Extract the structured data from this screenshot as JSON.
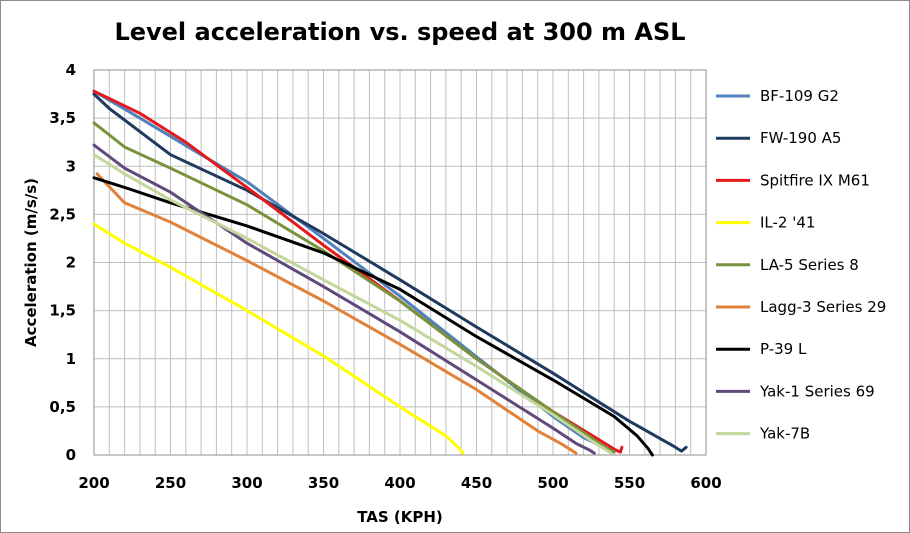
{
  "chart_data": {
    "type": "line",
    "title": "Level acceleration vs. speed at 300 m ASL",
    "xlabel": "TAS (KPH)",
    "ylabel": "Acceleration (m/s/s)",
    "xlim": [
      200,
      600
    ],
    "ylim": [
      0,
      4
    ],
    "x_ticks": [
      "200",
      "250",
      "300",
      "350",
      "400",
      "450",
      "500",
      "550",
      "600"
    ],
    "y_ticks": [
      "0",
      "0,5",
      "1",
      "1,5",
      "2",
      "2,5",
      "3",
      "3,5",
      "4"
    ],
    "grid": "vertical and horizontal",
    "legend_position": "right",
    "series": [
      {
        "name": "BF-109 G2",
        "color": "#4f81bd",
        "points": [
          [
            200,
            3.78
          ],
          [
            230,
            3.5
          ],
          [
            270,
            3.12
          ],
          [
            300,
            2.84
          ],
          [
            350,
            2.25
          ],
          [
            400,
            1.65
          ],
          [
            450,
            1.02
          ],
          [
            500,
            0.4
          ],
          [
            520,
            0.18
          ],
          [
            535,
            0.07
          ],
          [
            540,
            0.04
          ]
        ]
      },
      {
        "name": "FW-190 A5",
        "color": "#1f3a5f",
        "points": [
          [
            200,
            3.75
          ],
          [
            210,
            3.6
          ],
          [
            250,
            3.12
          ],
          [
            300,
            2.75
          ],
          [
            350,
            2.3
          ],
          [
            400,
            1.82
          ],
          [
            450,
            1.33
          ],
          [
            500,
            0.85
          ],
          [
            550,
            0.35
          ],
          [
            578,
            0.1
          ],
          [
            584,
            0.04
          ],
          [
            587,
            0.08
          ]
        ]
      },
      {
        "name": "Spitfire IX M61",
        "color": "#e31a1c",
        "points": [
          [
            200,
            3.78
          ],
          [
            230,
            3.55
          ],
          [
            260,
            3.25
          ],
          [
            300,
            2.78
          ],
          [
            350,
            2.18
          ],
          [
            400,
            1.6
          ],
          [
            450,
            1.0
          ],
          [
            500,
            0.45
          ],
          [
            530,
            0.16
          ],
          [
            540,
            0.06
          ],
          [
            544,
            0.03
          ],
          [
            545,
            0.08
          ]
        ]
      },
      {
        "name": "IL-2 '41",
        "color": "#ffff00",
        "points": [
          [
            200,
            2.4
          ],
          [
            220,
            2.2
          ],
          [
            250,
            1.95
          ],
          [
            300,
            1.5
          ],
          [
            350,
            1.03
          ],
          [
            400,
            0.5
          ],
          [
            430,
            0.2
          ],
          [
            438,
            0.08
          ],
          [
            441,
            0.02
          ]
        ]
      },
      {
        "name": "LA-5 Series 8",
        "color": "#77933c",
        "points": [
          [
            200,
            3.45
          ],
          [
            220,
            3.2
          ],
          [
            250,
            2.98
          ],
          [
            300,
            2.6
          ],
          [
            350,
            2.12
          ],
          [
            400,
            1.6
          ],
          [
            450,
            1.0
          ],
          [
            500,
            0.45
          ],
          [
            525,
            0.18
          ],
          [
            535,
            0.07
          ],
          [
            540,
            0.03
          ]
        ]
      },
      {
        "name": "Lagg-3 Series 29",
        "color": "#e0823a",
        "points": [
          [
            202,
            2.92
          ],
          [
            220,
            2.62
          ],
          [
            250,
            2.42
          ],
          [
            300,
            2.02
          ],
          [
            350,
            1.6
          ],
          [
            400,
            1.15
          ],
          [
            450,
            0.68
          ],
          [
            490,
            0.25
          ],
          [
            505,
            0.12
          ],
          [
            512,
            0.05
          ],
          [
            515,
            0.02
          ]
        ]
      },
      {
        "name": "P-39 L",
        "color": "#000000",
        "points": [
          [
            200,
            2.88
          ],
          [
            220,
            2.78
          ],
          [
            250,
            2.62
          ],
          [
            300,
            2.38
          ],
          [
            350,
            2.1
          ],
          [
            400,
            1.72
          ],
          [
            450,
            1.23
          ],
          [
            500,
            0.78
          ],
          [
            540,
            0.4
          ],
          [
            555,
            0.2
          ],
          [
            562,
            0.07
          ],
          [
            565,
            0.0
          ]
        ]
      },
      {
        "name": "Yak-1 Series 69",
        "color": "#604a7b",
        "points": [
          [
            200,
            3.22
          ],
          [
            220,
            2.98
          ],
          [
            250,
            2.73
          ],
          [
            300,
            2.2
          ],
          [
            350,
            1.75
          ],
          [
            400,
            1.28
          ],
          [
            450,
            0.78
          ],
          [
            500,
            0.28
          ],
          [
            515,
            0.12
          ],
          [
            524,
            0.05
          ],
          [
            527,
            0.02
          ]
        ]
      },
      {
        "name": "Yak-7B",
        "color": "#c3d69b",
        "points": [
          [
            200,
            3.12
          ],
          [
            220,
            2.92
          ],
          [
            250,
            2.65
          ],
          [
            300,
            2.25
          ],
          [
            350,
            1.82
          ],
          [
            400,
            1.4
          ],
          [
            450,
            0.92
          ],
          [
            500,
            0.42
          ],
          [
            525,
            0.15
          ],
          [
            535,
            0.05
          ],
          [
            538,
            0.02
          ]
        ]
      }
    ]
  }
}
